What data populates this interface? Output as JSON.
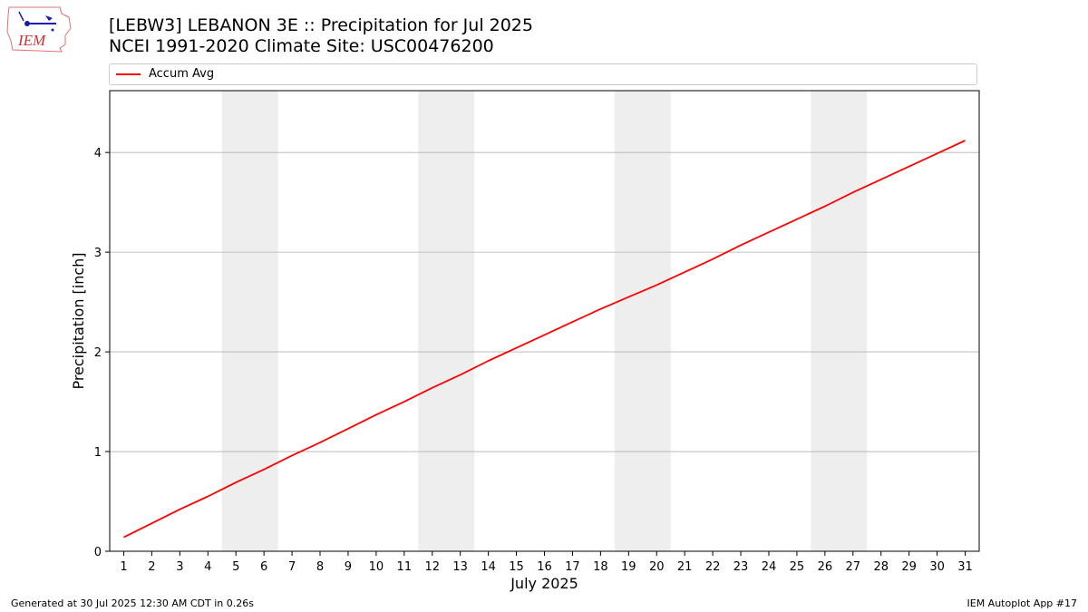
{
  "header": {
    "title_line1": "[LEBW3] LEBANON 3E :: Precipitation for Jul 2025",
    "title_line2": "NCEI 1991-2020 Climate Site: USC00476200"
  },
  "logo": {
    "text": "IEM"
  },
  "footer": {
    "left": "Generated at 30 Jul 2025 12:30 AM CDT in 0.26s",
    "right": "IEM Autoplot App #17"
  },
  "colors": {
    "series": "#ff0000",
    "weekend_band": "#eeeeee",
    "grid": "#b0b0b0"
  },
  "chart_data": {
    "type": "line",
    "xlabel": "July 2025",
    "ylabel": "Precipitation [inch]",
    "xlim": [
      0.5,
      31.5
    ],
    "ylim": [
      0,
      4.62
    ],
    "yticks": [
      0,
      1,
      2,
      3,
      4
    ],
    "xticks": [
      1,
      2,
      3,
      4,
      5,
      6,
      7,
      8,
      9,
      10,
      11,
      12,
      13,
      14,
      15,
      16,
      17,
      18,
      19,
      20,
      21,
      22,
      23,
      24,
      25,
      26,
      27,
      28,
      29,
      30,
      31
    ],
    "grid": "horizontal",
    "legend_position": "top",
    "shaded_days": [
      [
        5,
        6
      ],
      [
        12,
        13
      ],
      [
        19,
        20
      ],
      [
        26,
        27
      ]
    ],
    "series": [
      {
        "name": "Accum Avg",
        "x": [
          1,
          2,
          3,
          4,
          5,
          6,
          7,
          8,
          9,
          10,
          11,
          12,
          13,
          14,
          15,
          16,
          17,
          18,
          19,
          20,
          21,
          22,
          23,
          24,
          25,
          26,
          27,
          28,
          29,
          30,
          31
        ],
        "values": [
          0.14,
          0.28,
          0.42,
          0.55,
          0.69,
          0.82,
          0.96,
          1.09,
          1.23,
          1.37,
          1.5,
          1.64,
          1.77,
          1.91,
          2.04,
          2.17,
          2.3,
          2.43,
          2.55,
          2.67,
          2.8,
          2.93,
          3.07,
          3.2,
          3.33,
          3.46,
          3.6,
          3.73,
          3.86,
          3.99,
          4.12
        ]
      }
    ]
  }
}
